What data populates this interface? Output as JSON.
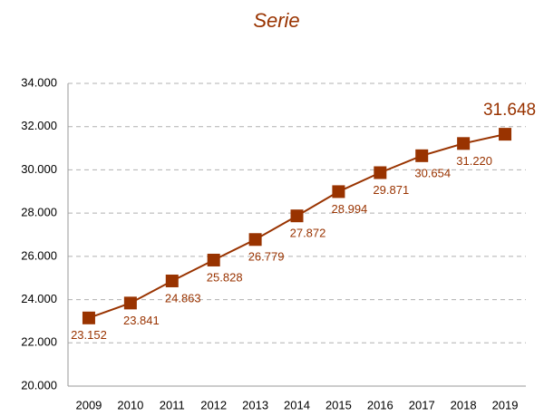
{
  "chart_data": {
    "type": "line",
    "title": "Serie",
    "categories": [
      "2009",
      "2010",
      "2011",
      "2012",
      "2013",
      "2014",
      "2015",
      "2016",
      "2017",
      "2018",
      "2019"
    ],
    "series": [
      {
        "name": "Serie",
        "color": "#993300",
        "values": [
          23152,
          23841,
          24863,
          25828,
          26779,
          27872,
          28994,
          29871,
          30654,
          31220,
          31648
        ],
        "value_labels": [
          "23.152",
          "23.841",
          "24.863",
          "25.828",
          "26.779",
          "27.872",
          "28.994",
          "29.871",
          "30.654",
          "31.220",
          "31.648"
        ]
      }
    ],
    "ylim": [
      20000,
      34000
    ],
    "yticks": [
      {
        "value": 20000,
        "label": "20.000"
      },
      {
        "value": 22000,
        "label": "22.000"
      },
      {
        "value": 24000,
        "label": "24.000"
      },
      {
        "value": 26000,
        "label": "26.000"
      },
      {
        "value": 28000,
        "label": "28.000"
      },
      {
        "value": 30000,
        "label": "30.000"
      },
      {
        "value": 32000,
        "label": "32.000"
      },
      {
        "value": 34000,
        "label": "34.000"
      }
    ],
    "grid": true
  }
}
